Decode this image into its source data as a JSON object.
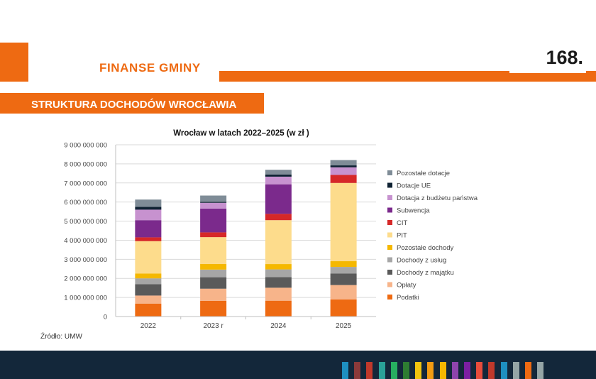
{
  "header": {
    "title": "FINANSE GMINY",
    "page_number": "168."
  },
  "section": {
    "title": "STRUKTURA DOCHODÓW WROCŁAWIA"
  },
  "source": "Źródło: UMW",
  "colors": {
    "accent": "#ee6a12",
    "footer": "#13273a",
    "footer_stripes": [
      "#1e8fc0",
      "#8b3a3a",
      "#c0392b",
      "#2aa198",
      "#27ae60",
      "#2e7d32",
      "#f1c40f",
      "#f39c12",
      "#f5b800",
      "#8e44ad",
      "#7b1fa2",
      "#e74c3c",
      "#c0392b",
      "#1e8fc0",
      "#95a5a6",
      "#ee6a12",
      "#95a5a6"
    ]
  },
  "chart_data": {
    "type": "bar",
    "stacked": true,
    "title": "Wrocław w latach 2022–2025 (w zł )",
    "categories": [
      "2022",
      "2023 r",
      "2024",
      "2025"
    ],
    "ylim": [
      0,
      9000000000
    ],
    "yticks": [
      "0",
      "1 000 000 000",
      "2 000 000 000",
      "3 000 000 000",
      "4 000 000 000",
      "5 000 000 000",
      "6 000 000 000",
      "7 000 000 000",
      "8 000 000 000",
      "9 000 000 000"
    ],
    "grid": true,
    "legend_position": "right",
    "series": [
      {
        "name": "Podatki",
        "color": "#ee6a12",
        "values": [
          680000000,
          820000000,
          830000000,
          900000000
        ]
      },
      {
        "name": "Opłaty",
        "color": "#f7b48a",
        "values": [
          420000000,
          640000000,
          680000000,
          750000000
        ]
      },
      {
        "name": "Dochody z majątku",
        "color": "#5a5a5a",
        "values": [
          600000000,
          600000000,
          560000000,
          600000000
        ]
      },
      {
        "name": "Dochody z usług",
        "color": "#a6a6a6",
        "values": [
          300000000,
          400000000,
          400000000,
          350000000
        ]
      },
      {
        "name": "Pozostałe dochody",
        "color": "#f5b800",
        "values": [
          250000000,
          300000000,
          280000000,
          300000000
        ]
      },
      {
        "name": "PIT",
        "color": "#fddc8c",
        "values": [
          1700000000,
          1400000000,
          2300000000,
          4100000000
        ]
      },
      {
        "name": "CIT",
        "color": "#d62828",
        "values": [
          200000000,
          250000000,
          330000000,
          420000000
        ]
      },
      {
        "name": "Subwencja",
        "color": "#7b2a8c",
        "values": [
          900000000,
          1250000000,
          1550000000,
          0
        ]
      },
      {
        "name": "Dotacja z budżetu państwa",
        "color": "#c792cf",
        "values": [
          550000000,
          300000000,
          400000000,
          400000000
        ]
      },
      {
        "name": "Dotacje UE",
        "color": "#0f2233",
        "values": [
          150000000,
          50000000,
          110000000,
          100000000
        ]
      },
      {
        "name": "Pozostałe dotacje",
        "color": "#7f8c97",
        "values": [
          380000000,
          330000000,
          250000000,
          280000000
        ]
      }
    ]
  }
}
